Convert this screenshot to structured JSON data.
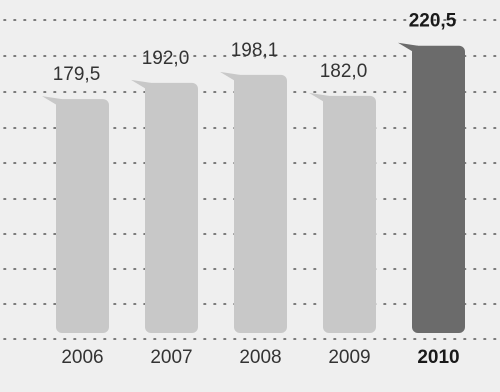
{
  "chart_data": {
    "type": "bar",
    "categories": [
      "2006",
      "2007",
      "2008",
      "2009",
      "2010"
    ],
    "values": [
      179.5,
      192.0,
      198.1,
      182.0,
      220.5
    ],
    "value_labels": [
      "179,5",
      "192,0",
      "198,1",
      "182,0",
      "220,5"
    ],
    "highlight_index": 4,
    "title": "",
    "xlabel": "",
    "ylabel": "",
    "ylim": [
      0,
      235
    ],
    "grid": true,
    "legend": "none"
  },
  "colors": {
    "background": "#efefef",
    "bar": "#c8c8c8",
    "bar_highlight": "#6b6b6b",
    "grid": "#555555"
  }
}
